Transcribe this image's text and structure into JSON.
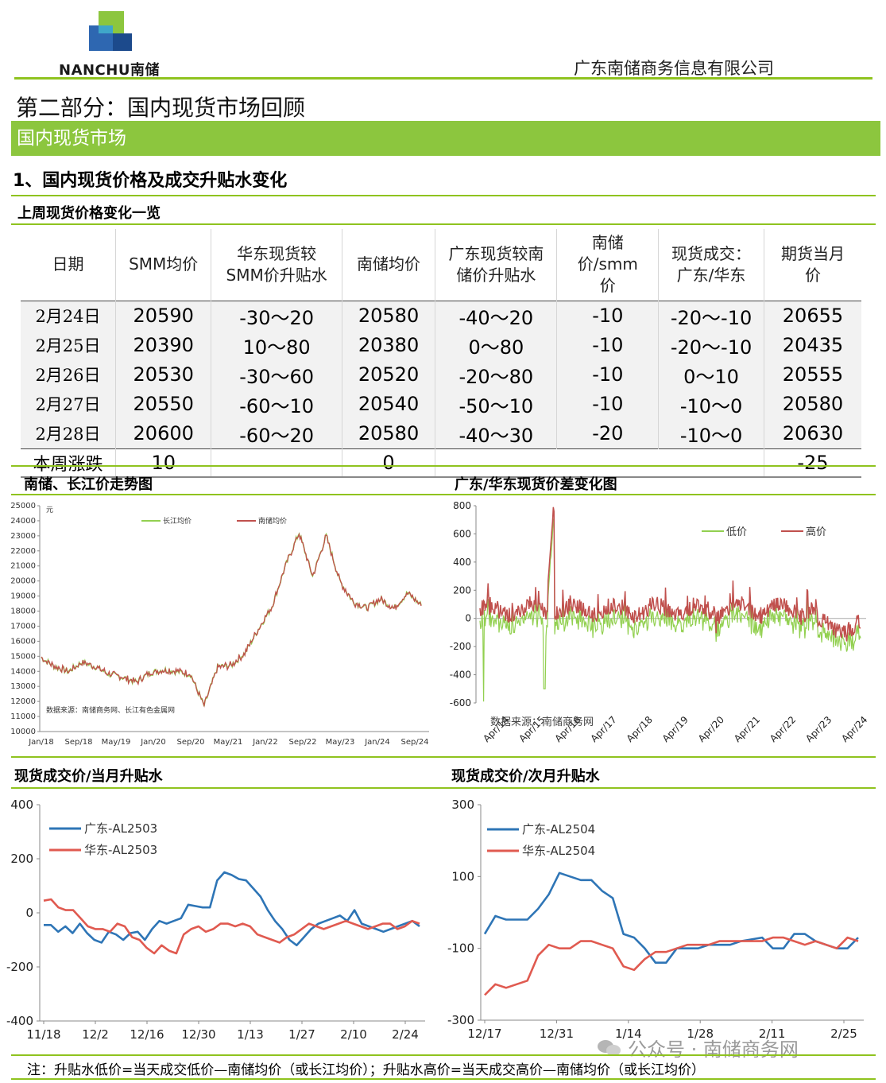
{
  "header": {
    "logo_text": "NANCHU南储",
    "company": "广东南储商务信息有限公司"
  },
  "section": {
    "part_title": "第二部分：国内现货市场回顾",
    "band_title": "国内现货市场",
    "subtitle": "1、国内现货价格及成交升贴水变化",
    "table_title": "上周现货价格变化一览"
  },
  "table": {
    "headers": [
      "日期",
      "SMM均价",
      "华东现货较SMM价升贴水",
      "南储均价",
      "广东现货较南储价升贴水",
      "南储价/smm价",
      "现货成交：广东/华东",
      "期货当月价"
    ],
    "rows": [
      [
        "2月24日",
        "20590",
        "-30～20",
        "20580",
        "-40～20",
        "-10",
        "-20～-10",
        "20655"
      ],
      [
        "2月25日",
        "20390",
        "10～80",
        "20380",
        "0～80",
        "-10",
        "-20～-10",
        "20435"
      ],
      [
        "2月26日",
        "20530",
        "-30～60",
        "20520",
        "-20～80",
        "-10",
        "0～10",
        "20555"
      ],
      [
        "2月27日",
        "20550",
        "-60～10",
        "20540",
        "-50～10",
        "-10",
        "-10～0",
        "20580"
      ],
      [
        "2月28日",
        "20600",
        "-60～20",
        "20580",
        "-40～30",
        "-20",
        "-10～0",
        "20630"
      ]
    ],
    "summary": {
      "label": "本周涨跌",
      "smm": "10",
      "nanchu": "0",
      "futures": "-25"
    }
  },
  "chart_titles": {
    "c1": "南储、长江价走势图",
    "c2": "广东/华东现货价差变化图",
    "c3": "现货成交价/当月升贴水",
    "c4": "现货成交价/次月升贴水"
  },
  "chart_data": [
    {
      "type": "line",
      "unit_label": "元",
      "source_note": "数据来源：南储商务网、长江有色金属网",
      "x_ticks": [
        "Jan/18",
        "Sep/18",
        "May/19",
        "Jan/20",
        "Sep/20",
        "May/21",
        "Jan/22",
        "Sep/22",
        "May/23",
        "Jan/24",
        "Sep/24"
      ],
      "ylim": [
        10000,
        25000
      ],
      "y_ticks": [
        "10000",
        "11000",
        "12000",
        "13000",
        "14000",
        "15000",
        "16000",
        "17000",
        "18000",
        "19000",
        "20000",
        "21000",
        "22000",
        "23000",
        "24000",
        "25000"
      ],
      "series": [
        {
          "name": "长江均价",
          "color": "#92d050"
        },
        {
          "name": "南储均价",
          "color": "#c0504d"
        }
      ],
      "x_month_index": [
        0,
        3,
        6,
        9,
        12,
        15,
        18,
        21,
        24,
        27,
        30,
        33,
        36,
        39,
        42,
        45,
        48,
        51,
        54,
        57,
        60,
        63,
        66,
        69,
        72,
        75,
        78,
        81,
        84
      ],
      "values": [
        14900,
        14300,
        14000,
        14600,
        14300,
        13800,
        13600,
        13300,
        13900,
        14100,
        14000,
        13800,
        11700,
        14300,
        14400,
        15200,
        16800,
        18300,
        21000,
        23200,
        20300,
        23000,
        20000,
        18600,
        18200,
        18800,
        18200,
        19200,
        18400
      ]
    },
    {
      "type": "line",
      "x_ticks": [
        "Apr/14",
        "Apr/15",
        "Apr/16",
        "Apr/17",
        "Apr/18",
        "Apr/19",
        "Apr/20",
        "Apr/21",
        "Apr/22",
        "Apr/23",
        "Apr/24"
      ],
      "ylim": [
        -600,
        800
      ],
      "y_ticks": [
        "800",
        "600",
        "400",
        "200",
        "0",
        "-200",
        "-400",
        "-600"
      ],
      "source_note": "数据来源：南储商务网",
      "series": [
        {
          "name": "低价",
          "color": "#92d050"
        },
        {
          "name": "高价",
          "color": "#c0504d"
        }
      ]
    },
    {
      "type": "line",
      "x_ticks": [
        "11/18",
        "12/2",
        "12/16",
        "12/30",
        "1/13",
        "1/27",
        "2/10",
        "2/24"
      ],
      "ylim": [
        -400,
        400
      ],
      "y_ticks": [
        "400",
        "200",
        "0",
        "-200",
        "-400"
      ],
      "series": [
        {
          "name": "广东-AL2503",
          "color": "#2e75b6",
          "values": [
            -45,
            -45,
            -70,
            -50,
            -75,
            -40,
            -75,
            -100,
            -110,
            -70,
            -80,
            -100,
            -75,
            -70,
            -100,
            -60,
            -30,
            -40,
            -30,
            -20,
            30,
            25,
            20,
            20,
            120,
            150,
            140,
            125,
            120,
            90,
            60,
            10,
            -30,
            -60,
            -100,
            -120,
            -90,
            -60,
            -40,
            -30,
            -20,
            -10,
            -30,
            10,
            -40,
            -50,
            -60,
            -70,
            -60,
            -50,
            -40,
            -30,
            -50
          ]
        },
        {
          "name": "华东-AL2503",
          "color": "#e05a50",
          "values": [
            45,
            50,
            20,
            10,
            10,
            -20,
            -50,
            -60,
            -60,
            -70,
            -40,
            -50,
            -90,
            -100,
            -130,
            -150,
            -120,
            -140,
            -150,
            -80,
            -60,
            -50,
            -70,
            -60,
            -40,
            -40,
            -50,
            -40,
            -50,
            -80,
            -90,
            -100,
            -110,
            -90,
            -80,
            -60,
            -40,
            -50,
            -60,
            -50,
            -40,
            -30,
            -40,
            -50,
            -60,
            -50,
            -40,
            -40,
            -60,
            -50,
            -30,
            -40
          ]
        }
      ]
    },
    {
      "type": "line",
      "x_ticks": [
        "12/17",
        "12/31",
        "1/14",
        "1/28",
        "2/11",
        "2/25"
      ],
      "ylim": [
        -300,
        300
      ],
      "y_ticks": [
        "300",
        "100",
        "-100",
        "-300"
      ],
      "series": [
        {
          "name": "广东-AL2504",
          "color": "#2e75b6",
          "values": [
            -60,
            -10,
            -20,
            -20,
            -20,
            10,
            50,
            110,
            100,
            90,
            90,
            60,
            40,
            -60,
            -70,
            -100,
            -140,
            -140,
            -100,
            -100,
            -100,
            -90,
            -90,
            -90,
            -80,
            -75,
            -70,
            -100,
            -100,
            -60,
            -60,
            -80,
            -90,
            -100,
            -100,
            -70
          ]
        },
        {
          "name": "华东-AL2504",
          "color": "#e05a50",
          "values": [
            -230,
            -200,
            -210,
            -200,
            -190,
            -120,
            -90,
            -100,
            -100,
            -80,
            -80,
            -90,
            -100,
            -150,
            -160,
            -130,
            -110,
            -110,
            -100,
            -90,
            -90,
            -90,
            -80,
            -80,
            -80,
            -80,
            -80,
            -70,
            -70,
            -80,
            -90,
            -80,
            -90,
            -100,
            -70,
            -80
          ]
        }
      ]
    }
  ],
  "note": "注：升贴水低价=当天成交低价—南储均价（或长江均价）；升贴水高价=当天成交高价—南储均价（或长江均价）",
  "watermark": "公众号 · 南储商务网"
}
